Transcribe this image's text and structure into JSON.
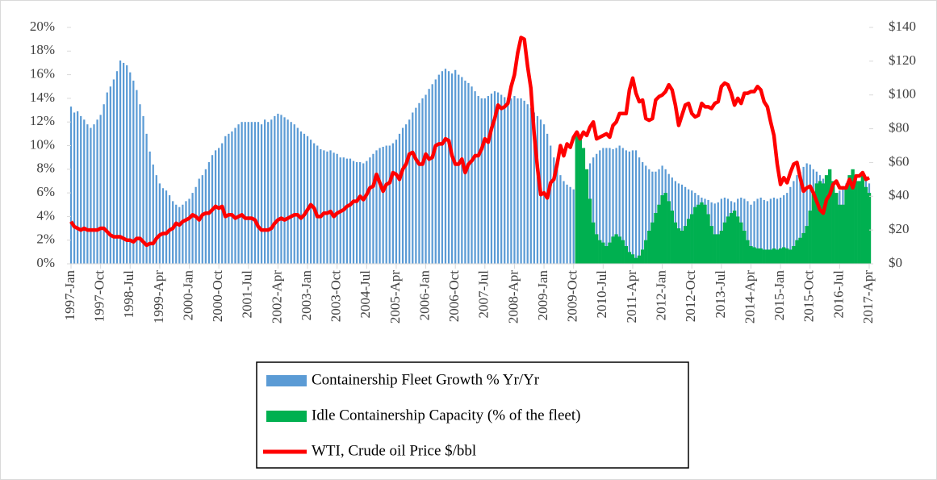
{
  "chart_data": {
    "type": "combo",
    "categories": [
      "1997-Jan",
      null,
      null,
      null,
      null,
      null,
      null,
      null,
      null,
      "1997-Oct",
      null,
      null,
      null,
      null,
      null,
      null,
      null,
      null,
      "1998-Jul",
      null,
      null,
      null,
      null,
      null,
      null,
      null,
      null,
      "1999-Apr",
      null,
      null,
      null,
      null,
      null,
      null,
      null,
      null,
      "2000-Jan",
      null,
      null,
      null,
      null,
      null,
      null,
      null,
      null,
      "2000-Oct",
      null,
      null,
      null,
      null,
      null,
      null,
      null,
      null,
      "2001-Jul",
      null,
      null,
      null,
      null,
      null,
      null,
      null,
      null,
      "2002-Apr",
      null,
      null,
      null,
      null,
      null,
      null,
      null,
      null,
      "2003-Jan",
      null,
      null,
      null,
      null,
      null,
      null,
      null,
      null,
      "2003-Oct",
      null,
      null,
      null,
      null,
      null,
      null,
      null,
      null,
      "2004-Jul",
      null,
      null,
      null,
      null,
      null,
      null,
      null,
      null,
      "2005-Apr",
      null,
      null,
      null,
      null,
      null,
      null,
      null,
      null,
      "2006-Jan",
      null,
      null,
      null,
      null,
      null,
      null,
      null,
      null,
      "2006-Oct",
      null,
      null,
      null,
      null,
      null,
      null,
      null,
      null,
      "2007-Jul",
      null,
      null,
      null,
      null,
      null,
      null,
      null,
      null,
      "2008-Apr",
      null,
      null,
      null,
      null,
      null,
      null,
      null,
      null,
      "2009-Jan",
      null,
      null,
      null,
      null,
      null,
      null,
      null,
      null,
      "2009-Oct",
      null,
      null,
      null,
      null,
      null,
      null,
      null,
      null,
      "2010-Jul",
      null,
      null,
      null,
      null,
      null,
      null,
      null,
      null,
      "2011-Apr",
      null,
      null,
      null,
      null,
      null,
      null,
      null,
      null,
      "2012-Jan",
      null,
      null,
      null,
      null,
      null,
      null,
      null,
      null,
      "2012-Oct",
      null,
      null,
      null,
      null,
      null,
      null,
      null,
      null,
      "2013-Jul",
      null,
      null,
      null,
      null,
      null,
      null,
      null,
      null,
      "2014-Apr",
      null,
      null,
      null,
      null,
      null,
      null,
      null,
      null,
      "2015-Jan",
      null,
      null,
      null,
      null,
      null,
      null,
      null,
      null,
      "2015-Oct",
      null,
      null,
      null,
      null,
      null,
      null,
      null,
      null,
      "2016-Jul",
      null,
      null,
      null,
      null,
      null,
      null,
      null,
      null,
      "2017-Apr"
    ],
    "series": [
      {
        "name": "Containership Fleet Growth % Yr/Yr",
        "type": "bar",
        "color": "#5b9bd5",
        "values": [
          13.3,
          12.8,
          12.9,
          12.5,
          12.2,
          11.8,
          11.5,
          11.8,
          12.2,
          12.6,
          13.5,
          14.5,
          15.0,
          15.6,
          16.3,
          17.2,
          17.0,
          16.8,
          16.2,
          15.5,
          14.7,
          13.5,
          12.5,
          11.0,
          9.5,
          8.4,
          7.5,
          6.8,
          6.4,
          6.2,
          5.8,
          5.3,
          5.0,
          4.8,
          5.0,
          5.3,
          5.5,
          6.0,
          6.5,
          7.2,
          7.5,
          8.0,
          8.6,
          9.2,
          9.6,
          9.8,
          10.2,
          10.8,
          11.0,
          11.2,
          11.5,
          11.8,
          12.0,
          12.0,
          12.0,
          12.0,
          12.0,
          12.0,
          11.8,
          12.2,
          12.0,
          12.2,
          12.5,
          12.7,
          12.6,
          12.4,
          12.2,
          12.0,
          11.8,
          11.5,
          11.2,
          11.0,
          10.8,
          10.5,
          10.2,
          10.0,
          9.7,
          9.6,
          9.5,
          9.6,
          9.4,
          9.3,
          9.0,
          9.0,
          8.9,
          8.9,
          8.7,
          8.6,
          8.6,
          8.5,
          8.7,
          9.0,
          9.3,
          9.6,
          9.8,
          9.9,
          10.0,
          10.0,
          10.2,
          10.5,
          11.0,
          11.5,
          11.8,
          12.2,
          12.8,
          13.2,
          13.6,
          14.0,
          14.3,
          14.8,
          15.2,
          15.6,
          16.0,
          16.3,
          16.5,
          16.3,
          16.1,
          16.4,
          16.0,
          15.8,
          15.5,
          15.3,
          15.0,
          14.6,
          14.2,
          14.0,
          14.0,
          14.2,
          14.4,
          14.6,
          14.5,
          14.3,
          14.1,
          14.0,
          14.0,
          14.2,
          14.0,
          14.0,
          13.8,
          13.5,
          13.2,
          12.8,
          12.5,
          12.2,
          11.8,
          11.0,
          10.0,
          9.0,
          8.0,
          7.5,
          7.0,
          6.7,
          6.5,
          6.3,
          6.5,
          6.8,
          7.2,
          7.8,
          8.5,
          9.0,
          9.3,
          9.6,
          9.8,
          9.8,
          9.8,
          9.7,
          9.8,
          10.0,
          9.8,
          9.6,
          9.5,
          9.6,
          9.6,
          9.0,
          8.6,
          8.3,
          8.0,
          7.8,
          7.8,
          8.0,
          8.3,
          8.0,
          7.6,
          7.3,
          7.0,
          6.8,
          6.7,
          6.5,
          6.3,
          6.2,
          6.0,
          5.8,
          5.6,
          5.5,
          5.4,
          5.2,
          5.1,
          5.2,
          5.5,
          5.6,
          5.5,
          5.3,
          5.2,
          5.5,
          5.6,
          5.5,
          5.3,
          5.0,
          5.3,
          5.5,
          5.6,
          5.4,
          5.3,
          5.5,
          5.6,
          5.5,
          5.6,
          5.8,
          6.0,
          6.5,
          7.0,
          7.5,
          7.8,
          8.2,
          8.5,
          8.4,
          8.0,
          7.8,
          7.5,
          7.2,
          6.8,
          6.5,
          6.2,
          6.0,
          6.2,
          6.5,
          6.8,
          7.0,
          7.2,
          7.2,
          7.0,
          7.2,
          7.0,
          6.8
        ]
      },
      {
        "name": "Idle Containership Capacity (% of the fleet)",
        "type": "bar",
        "color": "#00b050",
        "values": [
          null,
          null,
          null,
          null,
          null,
          null,
          null,
          null,
          null,
          null,
          null,
          null,
          null,
          null,
          null,
          null,
          null,
          null,
          null,
          null,
          null,
          null,
          null,
          null,
          null,
          null,
          null,
          null,
          null,
          null,
          null,
          null,
          null,
          null,
          null,
          null,
          null,
          null,
          null,
          null,
          null,
          null,
          null,
          null,
          null,
          null,
          null,
          null,
          null,
          null,
          null,
          null,
          null,
          null,
          null,
          null,
          null,
          null,
          null,
          null,
          null,
          null,
          null,
          null,
          null,
          null,
          null,
          null,
          null,
          null,
          null,
          null,
          null,
          null,
          null,
          null,
          null,
          null,
          null,
          null,
          null,
          null,
          null,
          null,
          null,
          null,
          null,
          null,
          null,
          null,
          null,
          null,
          null,
          null,
          null,
          null,
          null,
          null,
          null,
          null,
          null,
          null,
          null,
          null,
          null,
          null,
          null,
          null,
          null,
          null,
          null,
          null,
          null,
          null,
          null,
          null,
          null,
          null,
          null,
          null,
          null,
          null,
          null,
          null,
          null,
          null,
          null,
          null,
          null,
          null,
          null,
          null,
          null,
          null,
          null,
          null,
          null,
          null,
          null,
          null,
          null,
          null,
          null,
          null,
          null,
          null,
          null,
          null,
          null,
          null,
          null,
          null,
          null,
          null,
          10.8,
          10.5,
          9.8,
          8.0,
          5.5,
          3.5,
          2.5,
          2.0,
          1.8,
          1.5,
          1.8,
          2.3,
          2.5,
          2.3,
          2.0,
          1.5,
          1.0,
          0.8,
          0.5,
          0.7,
          1.2,
          2.0,
          2.8,
          3.5,
          4.3,
          5.0,
          5.8,
          6.0,
          5.3,
          4.5,
          3.5,
          3.0,
          2.8,
          3.2,
          3.8,
          4.2,
          4.8,
          5.0,
          5.2,
          5.0,
          4.2,
          3.2,
          2.5,
          2.5,
          2.8,
          3.5,
          4.0,
          4.3,
          4.5,
          4.0,
          3.5,
          2.8,
          2.0,
          1.5,
          1.4,
          1.3,
          1.3,
          1.2,
          1.2,
          1.2,
          1.3,
          1.2,
          1.3,
          1.4,
          1.3,
          1.2,
          1.5,
          2.0,
          2.2,
          2.6,
          3.2,
          4.5,
          6.0,
          6.8,
          7.0,
          6.8,
          7.5,
          8.0,
          7.0,
          6.0,
          5.0,
          5.0,
          6.5,
          7.5,
          8.0,
          7.0,
          7.0,
          7.5,
          6.5,
          6.0
        ]
      },
      {
        "name": "WTI, Crude oil Price $/bbl",
        "type": "line",
        "axis": "y2",
        "color": "#ff0000",
        "values": [
          25,
          22,
          21,
          20,
          21,
          20,
          20,
          20,
          20,
          21,
          21,
          19,
          17,
          16,
          16,
          16,
          15,
          14,
          14,
          13,
          15,
          15,
          13,
          11,
          12,
          12,
          15,
          17,
          18,
          18,
          20,
          21,
          24,
          23,
          25,
          26,
          27,
          29,
          28,
          26,
          29,
          30,
          30,
          32,
          34,
          33,
          34,
          28,
          29,
          29,
          27,
          28,
          29,
          27,
          27,
          27,
          26,
          22,
          20,
          20,
          20,
          21,
          24,
          26,
          27,
          26,
          27,
          28,
          29,
          29,
          27,
          29,
          32,
          35,
          33,
          28,
          28,
          30,
          30,
          31,
          28,
          30,
          31,
          32,
          34,
          35,
          37,
          37,
          40,
          38,
          41,
          45,
          46,
          53,
          48,
          43,
          47,
          48,
          54,
          53,
          50,
          56,
          59,
          65,
          66,
          62,
          59,
          59,
          65,
          62,
          63,
          70,
          71,
          71,
          74,
          73,
          64,
          59,
          59,
          62,
          54,
          59,
          61,
          64,
          64,
          68,
          74,
          72,
          80,
          86,
          94,
          92,
          93,
          95,
          105,
          112,
          125,
          134,
          133,
          117,
          104,
          77,
          57,
          41,
          42,
          39,
          48,
          50,
          59,
          70,
          64,
          71,
          69,
          75,
          78,
          74,
          78,
          76,
          81,
          84,
          74,
          75,
          76,
          77,
          75,
          82,
          84,
          89,
          89,
          89,
          103,
          110,
          101,
          96,
          97,
          86,
          85,
          86,
          97,
          99,
          100,
          102,
          106,
          103,
          94,
          82,
          88,
          94,
          95,
          89,
          87,
          88,
          95,
          93,
          93,
          92,
          95,
          96,
          105,
          107,
          106,
          101,
          94,
          98,
          95,
          101,
          101,
          102,
          102,
          105,
          103,
          96,
          93,
          84,
          76,
          59,
          47,
          51,
          48,
          54,
          59,
          60,
          51,
          43,
          45,
          46,
          42,
          37,
          32,
          30,
          38,
          41,
          47,
          49,
          45,
          45,
          45,
          50,
          45,
          52,
          52,
          54,
          50,
          51
        ]
      }
    ],
    "ylim": [
      0,
      20
    ],
    "yticks": [
      {
        "value": 0,
        "label": "0%"
      },
      {
        "value": 2,
        "label": "2%"
      },
      {
        "value": 4,
        "label": "4%"
      },
      {
        "value": 6,
        "label": "6%"
      },
      {
        "value": 8,
        "label": "8%"
      },
      {
        "value": 10,
        "label": "10%"
      },
      {
        "value": 12,
        "label": "12%"
      },
      {
        "value": 14,
        "label": "14%"
      },
      {
        "value": 16,
        "label": "16%"
      },
      {
        "value": 18,
        "label": "18%"
      },
      {
        "value": 20,
        "label": "20%"
      }
    ],
    "y2lim": [
      0,
      140
    ],
    "y2ticks": [
      {
        "value": 0,
        "label": "$0"
      },
      {
        "value": 20,
        "label": "$20"
      },
      {
        "value": 40,
        "label": "$40"
      },
      {
        "value": 60,
        "label": "$60"
      },
      {
        "value": 80,
        "label": "$80"
      },
      {
        "value": 100,
        "label": "$100"
      },
      {
        "value": 120,
        "label": "$120"
      },
      {
        "value": 140,
        "label": "$140"
      }
    ],
    "legend": "bottom"
  }
}
